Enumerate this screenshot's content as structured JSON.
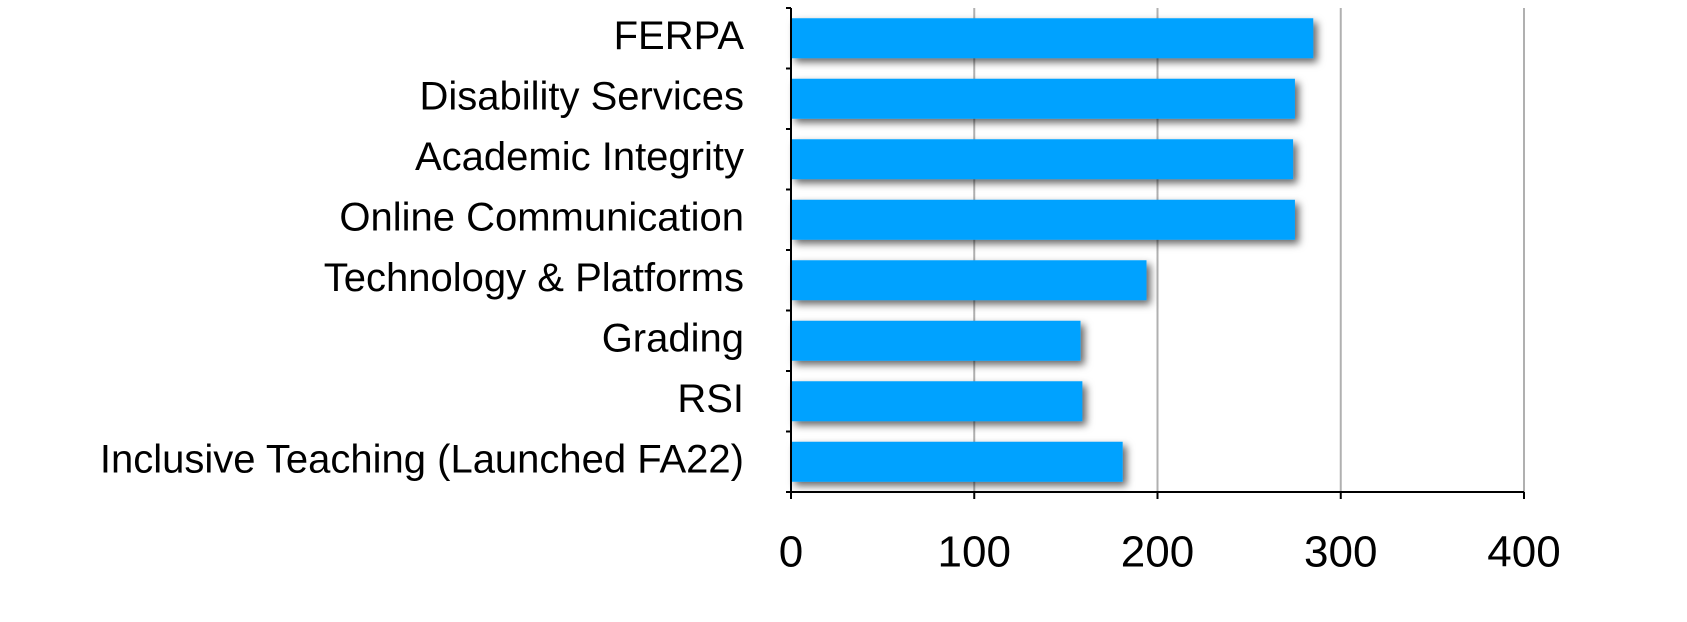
{
  "chart_data": {
    "type": "bar",
    "orientation": "horizontal",
    "categories": [
      "FERPA",
      "Disability Services",
      "Academic Integrity",
      "Online Communication",
      "Technology & Platforms",
      "Grading",
      "RSI",
      "Inclusive Teaching (Launched FA22)"
    ],
    "values": [
      285,
      275,
      274,
      275,
      194,
      158,
      159,
      181
    ],
    "color": "#00a2ff",
    "xlim": [
      0,
      400
    ],
    "xticks": [
      0,
      100,
      200,
      300,
      400
    ],
    "grid": true
  }
}
